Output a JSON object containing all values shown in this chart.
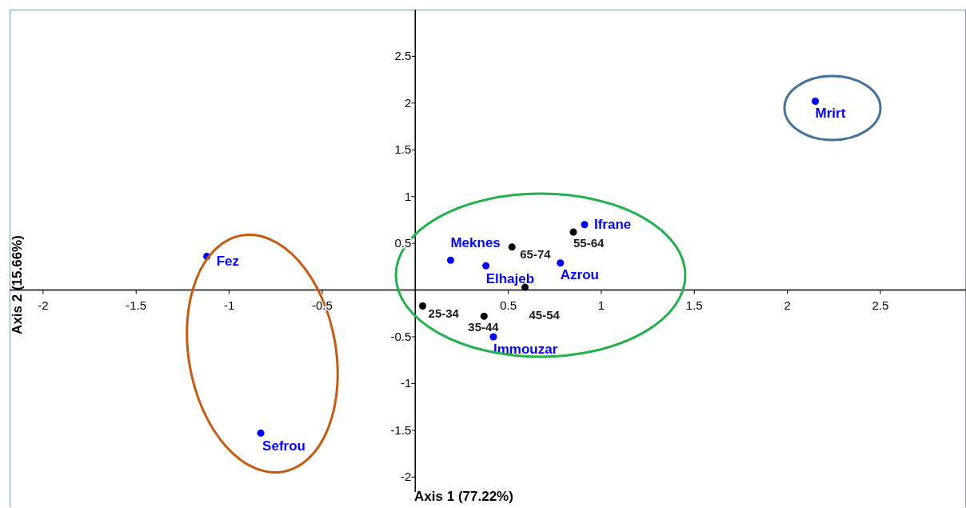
{
  "chart_data": {
    "type": "scatter",
    "xlabel": "Axis 1 (77.22%)",
    "ylabel": "Axis 2 (15.66%)",
    "xlim": [
      -2.18,
      2.96
    ],
    "ylim": [
      -2.16,
      3.0
    ],
    "xticks": [
      -2,
      -1.5,
      -1,
      -0.5,
      0.5,
      1,
      1.5,
      2,
      2.5
    ],
    "yticks": [
      -2,
      -1.5,
      -1,
      -0.5,
      0.5,
      1,
      1.5,
      2,
      2.5
    ],
    "grid": false,
    "legend": false,
    "marker": "circle",
    "series": [
      {
        "color": "#0000ff",
        "x": [
          2.15,
          -1.12,
          -0.83,
          0.19,
          0.38,
          0.78,
          0.91,
          0.42
        ],
        "values": [
          2.02,
          0.36,
          -1.53,
          0.32,
          0.26,
          0.29,
          0.7,
          -0.5
        ]
      },
      {
        "color": "#000000",
        "x": [
          0.52,
          0.85,
          0.04,
          0.37,
          0.59
        ],
        "values": [
          0.46,
          0.62,
          -0.17,
          -0.28,
          0.03
        ]
      }
    ],
    "annotations": [
      {
        "text": "Mrirt",
        "x": 2.15,
        "y": 2.02
      },
      {
        "text": "Fez",
        "x": -1.12,
        "y": 0.36
      },
      {
        "text": "Sefrou",
        "x": -0.83,
        "y": -1.53
      },
      {
        "text": "Meknes",
        "x": 0.19,
        "y": 0.32
      },
      {
        "text": "Elhajeb",
        "x": 0.38,
        "y": 0.26
      },
      {
        "text": "Azrou",
        "x": 0.78,
        "y": 0.29
      },
      {
        "text": "Ifrane",
        "x": 0.91,
        "y": 0.7
      },
      {
        "text": "Immouzar",
        "x": 0.42,
        "y": -0.5
      },
      {
        "text": "65-74",
        "x": 0.52,
        "y": 0.46
      },
      {
        "text": "55-64",
        "x": 0.85,
        "y": 0.62
      },
      {
        "text": "25-34",
        "x": 0.04,
        "y": -0.17
      },
      {
        "text": "35-44",
        "x": 0.37,
        "y": -0.28
      },
      {
        "text": "45-54",
        "x": 0.59,
        "y": 0.03
      }
    ]
  }
}
